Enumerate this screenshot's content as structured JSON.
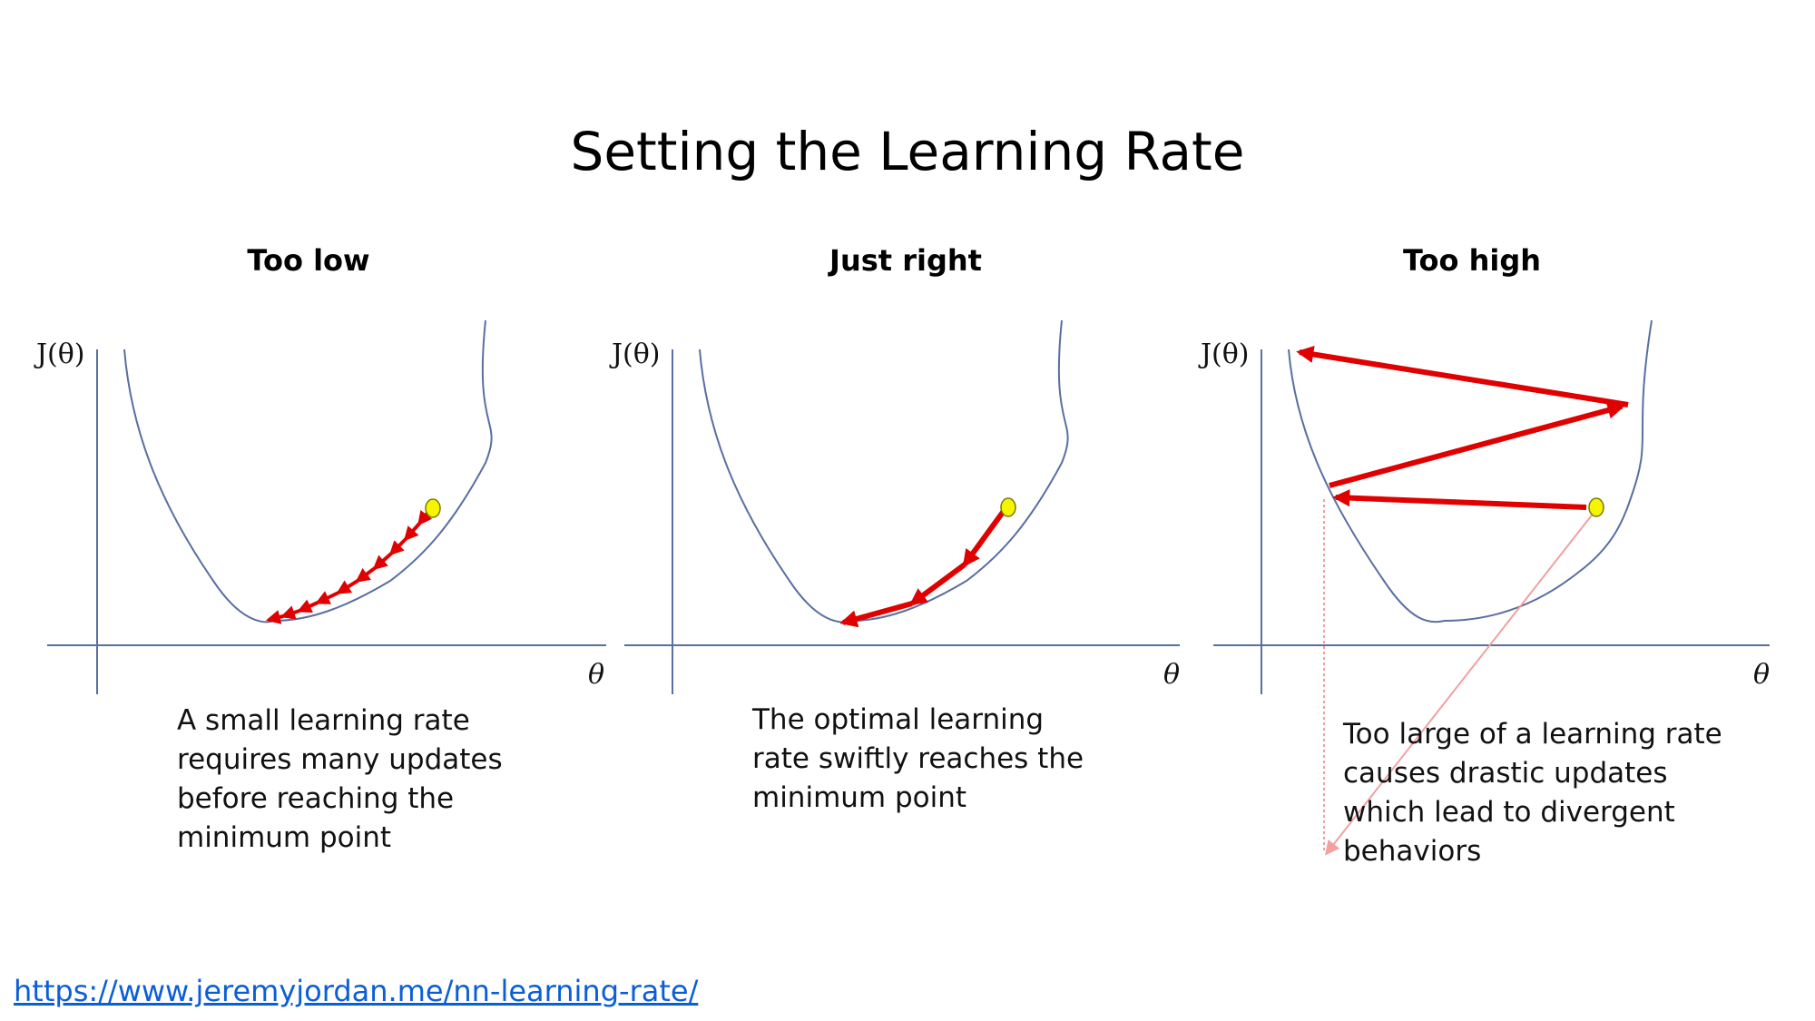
{
  "title": "Setting the Learning Rate",
  "panels": [
    {
      "title": "Too low",
      "y_label": "J(θ)",
      "x_label": "θ",
      "caption_lines": [
        "A small learning rate",
        "requires many updates",
        "before reaching the",
        "minimum point"
      ]
    },
    {
      "title": "Just right",
      "y_label": "J(θ)",
      "x_label": "θ",
      "caption_lines": [
        "The optimal learning",
        "rate swiftly reaches the",
        "minimum point"
      ]
    },
    {
      "title": "Too high",
      "y_label": "J(θ)",
      "x_label": "θ",
      "caption_lines": [
        "Too large of a learning rate",
        "causes drastic updates",
        "which lead to divergent",
        "behaviors"
      ]
    }
  ],
  "source_url": "https://www.jeremyjordan.me/nn-learning-rate/",
  "colors": {
    "curve": "#5a6fa0",
    "axis": "#5a6fa0",
    "arrow": "#e00000",
    "start_point": "#f5f500",
    "pointer_line": "#f2a0a0"
  }
}
